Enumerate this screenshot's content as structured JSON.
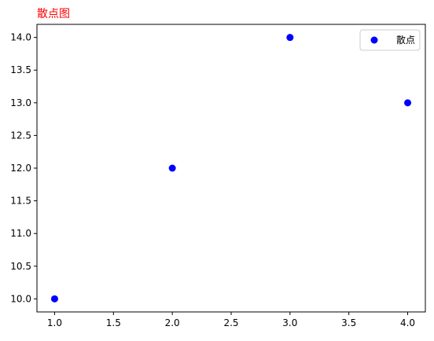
{
  "chart_data": {
    "type": "scatter",
    "title": "散点图",
    "title_color": "#ff0000",
    "xlabel": "",
    "ylabel": "",
    "xlim": [
      0.85,
      4.15
    ],
    "ylim": [
      9.8,
      14.2
    ],
    "x_ticks": [
      "1.0",
      "1.5",
      "2.0",
      "2.5",
      "3.0",
      "3.5",
      "4.0"
    ],
    "y_ticks": [
      "10.0",
      "10.5",
      "11.0",
      "11.5",
      "12.0",
      "12.5",
      "13.0",
      "13.5",
      "14.0"
    ],
    "grid": false,
    "legend_position": "top-right",
    "series": [
      {
        "name": "散点",
        "color": "#0000ff",
        "marker": "circle",
        "x": [
          1,
          2,
          3,
          4
        ],
        "y": [
          10,
          12,
          14,
          13
        ]
      }
    ]
  }
}
